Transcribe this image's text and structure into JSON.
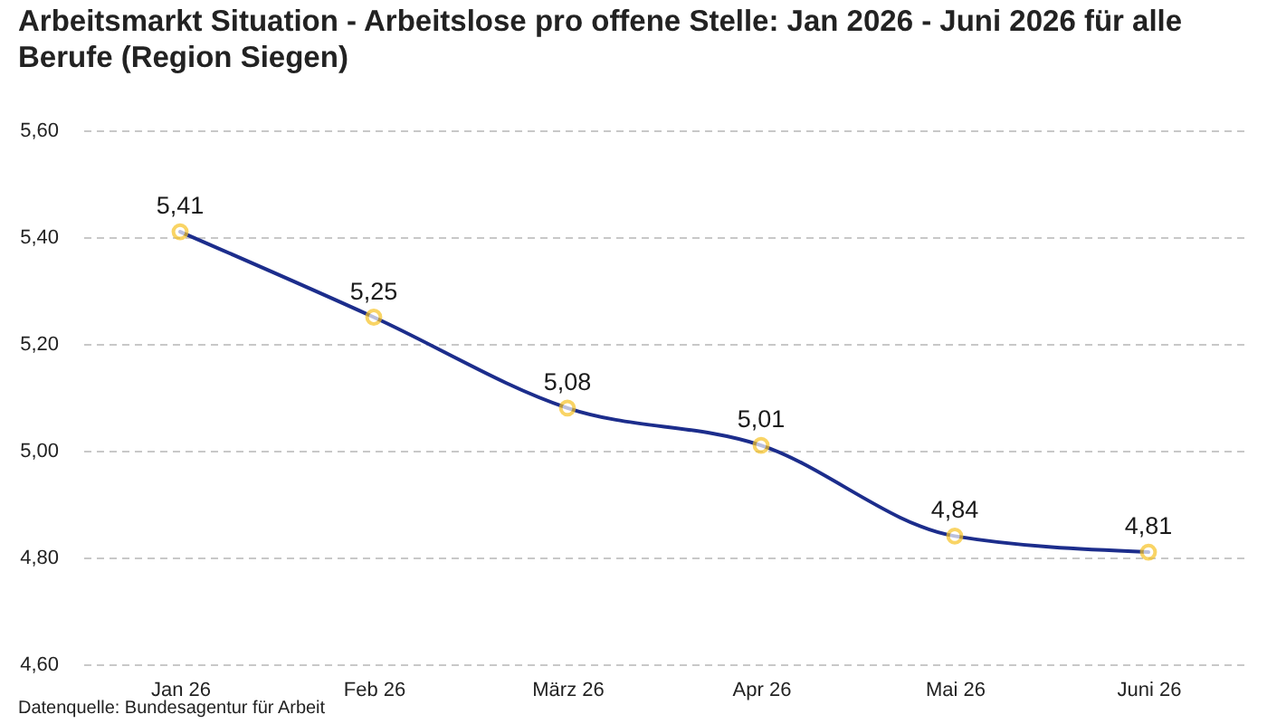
{
  "chart_data": {
    "type": "line",
    "title": "Arbeitsmarkt Situation - Arbeitslose pro offene Stelle: Jan 2026 - Juni 2026 für alle Berufe (Region Siegen)",
    "annotations": [
      "Datenquelle: Bundesagentur für Arbeit"
    ],
    "categories": [
      "Jan 26",
      "Feb 26",
      "März 26",
      "Apr 26",
      "Mai 26",
      "Juni 26"
    ],
    "series": [
      {
        "color": "#1c2d8c",
        "colors": [
          "#f7c325",
          "#f7c325",
          "#f7c325",
          "#f7c325",
          "#f7c325",
          "#f7c325"
        ],
        "values": [
          5.41,
          5.25,
          5.08,
          5.01,
          4.84,
          4.81
        ],
        "value_labels": [
          "5,41",
          "5,25",
          "5,08",
          "5,01",
          "4,84",
          "4,81"
        ]
      }
    ],
    "ylim": [
      4.6,
      5.6
    ],
    "yticks": [
      {
        "value": 4.6,
        "label": "4,60"
      },
      {
        "value": 4.8,
        "label": "4,80"
      },
      {
        "value": 5.0,
        "label": "5,00"
      },
      {
        "value": 5.2,
        "label": "5,20"
      },
      {
        "value": 5.4,
        "label": "5,40"
      },
      {
        "value": 5.6,
        "label": "5,60"
      }
    ],
    "grid": "y",
    "marker": "circle",
    "line_style": "solid"
  }
}
